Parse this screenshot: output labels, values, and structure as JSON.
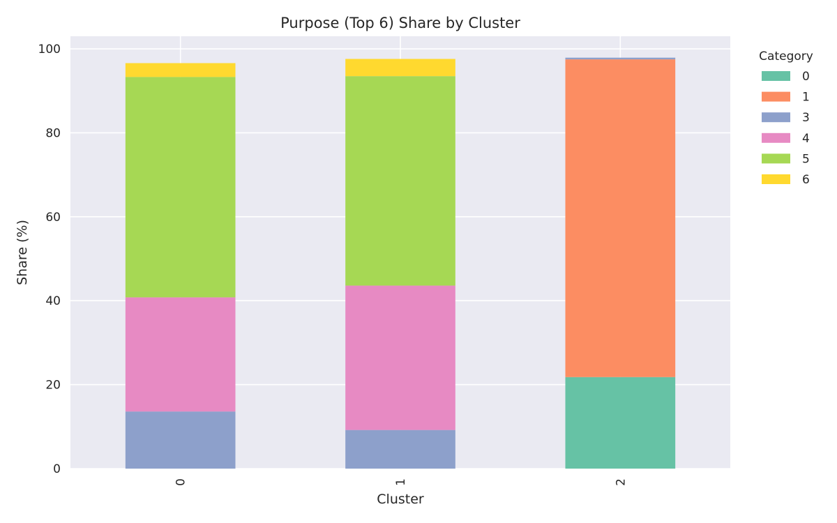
{
  "chart_data": {
    "type": "bar",
    "stacked": true,
    "title": "Purpose (Top 6) Share by Cluster",
    "xlabel": "Cluster",
    "ylabel": "Share (%)",
    "categories": [
      "0",
      "1",
      "2"
    ],
    "ylim": [
      0,
      103
    ],
    "yticks": [
      0,
      20,
      40,
      60,
      80,
      100
    ],
    "grid": true,
    "legend": {
      "title": "Category",
      "placement": "outside-right"
    },
    "series": [
      {
        "name": "0",
        "color": "#66c2a5",
        "values": [
          0,
          0,
          21.8
        ]
      },
      {
        "name": "1",
        "color": "#fc8d62",
        "values": [
          0,
          0,
          75.7
        ]
      },
      {
        "name": "3",
        "color": "#8da0cb",
        "values": [
          13.6,
          9.2,
          0.4
        ]
      },
      {
        "name": "4",
        "color": "#e78ac3",
        "values": [
          27.2,
          34.4,
          0
        ]
      },
      {
        "name": "5",
        "color": "#a6d854",
        "values": [
          52.5,
          49.9,
          0
        ]
      },
      {
        "name": "6",
        "color": "#ffd92f",
        "values": [
          3.3,
          4.1,
          0
        ]
      }
    ]
  },
  "colors": {
    "plot_background": "#eaeaf2",
    "grid": "#ffffff",
    "text": "#262626"
  }
}
